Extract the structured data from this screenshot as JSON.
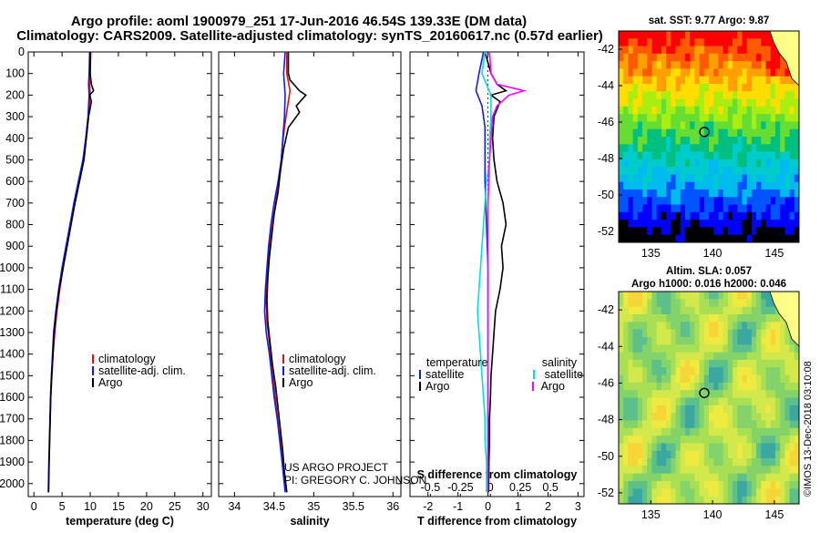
{
  "header": {
    "title_line1": "Argo profile: aoml 1900979_251 17-Jun-2016 46.54S 139.33E (DM data)",
    "title_line2": "Climatology: CARS2009. Satellite-adjusted climatology: synTS_20160617.nc (0.57d earlier)"
  },
  "colors": {
    "climatology": "#e01010",
    "satellite": "#1020e0",
    "argo": "#000000",
    "sat_salinity": "#00e0e0",
    "argo_salinity": "#ff00ff"
  },
  "depth_ticks": [
    "0",
    "100",
    "200",
    "300",
    "400",
    "500",
    "600",
    "700",
    "800",
    "900",
    "1000",
    "1100",
    "1200",
    "1300",
    "1400",
    "1500",
    "1600",
    "1700",
    "1800",
    "1900",
    "2000"
  ],
  "chart_data": [
    {
      "type": "line",
      "id": "temperature",
      "xlabel": "temperature (deg C)",
      "xlim": [
        -1,
        31.5
      ],
      "ylim": [
        2060,
        0
      ],
      "xticks": [
        "0",
        "5",
        "10",
        "15",
        "20",
        "25",
        "30"
      ],
      "legend": [
        "climatology",
        "satellite-adj. clim.",
        "Argo"
      ],
      "series": [
        {
          "name": "climatology",
          "values": [
            [
              10.1,
              0
            ],
            [
              10.0,
              100
            ],
            [
              9.9,
              150
            ],
            [
              10.0,
              200
            ],
            [
              9.7,
              300
            ],
            [
              9.3,
              400
            ],
            [
              8.8,
              500
            ],
            [
              8.0,
              600
            ],
            [
              7.2,
              700
            ],
            [
              6.5,
              800
            ],
            [
              5.8,
              900
            ],
            [
              5.2,
              1000
            ],
            [
              4.6,
              1100
            ],
            [
              4.1,
              1200
            ],
            [
              3.7,
              1300
            ],
            [
              3.4,
              1400
            ],
            [
              3.2,
              1500
            ],
            [
              3.0,
              1600
            ],
            [
              2.9,
              1700
            ],
            [
              2.8,
              1800
            ],
            [
              2.7,
              1900
            ],
            [
              2.6,
              2040
            ]
          ]
        },
        {
          "name": "satellite-adj. clim.",
          "values": [
            [
              9.9,
              0
            ],
            [
              9.8,
              100
            ],
            [
              9.7,
              150
            ],
            [
              9.8,
              200
            ],
            [
              9.6,
              300
            ],
            [
              9.2,
              400
            ],
            [
              8.7,
              500
            ],
            [
              7.9,
              600
            ],
            [
              7.1,
              700
            ],
            [
              6.4,
              800
            ],
            [
              5.7,
              900
            ],
            [
              5.0,
              1000
            ],
            [
              4.4,
              1100
            ],
            [
              3.9,
              1200
            ],
            [
              3.5,
              1300
            ],
            [
              3.3,
              1400
            ],
            [
              3.1,
              1500
            ],
            [
              2.95,
              1600
            ],
            [
              2.85,
              1700
            ],
            [
              2.75,
              1800
            ],
            [
              2.65,
              1900
            ],
            [
              2.55,
              2040
            ]
          ]
        },
        {
          "name": "Argo",
          "values": [
            [
              10.0,
              0
            ],
            [
              10.0,
              100
            ],
            [
              10.2,
              150
            ],
            [
              10.6,
              180
            ],
            [
              9.9,
              200
            ],
            [
              10.2,
              230
            ],
            [
              9.7,
              300
            ],
            [
              9.3,
              400
            ],
            [
              8.9,
              500
            ],
            [
              8.1,
              600
            ],
            [
              7.3,
              700
            ],
            [
              6.6,
              800
            ],
            [
              5.9,
              900
            ],
            [
              5.2,
              1000
            ],
            [
              4.5,
              1100
            ],
            [
              4.0,
              1200
            ],
            [
              3.6,
              1300
            ],
            [
              3.4,
              1400
            ],
            [
              3.15,
              1500
            ],
            [
              3.0,
              1600
            ],
            [
              2.9,
              1700
            ],
            [
              2.8,
              1800
            ],
            [
              2.7,
              1900
            ],
            [
              2.6,
              2040
            ]
          ]
        }
      ]
    },
    {
      "type": "line",
      "id": "salinity",
      "xlabel": "salinity",
      "xlim": [
        33.8,
        36.1
      ],
      "ylim": [
        2060,
        0
      ],
      "xticks": [
        "34",
        "34.5",
        "35",
        "35.5",
        "36"
      ],
      "legend": [
        "climatology",
        "satellite-adj. clim.",
        "Argo"
      ],
      "series": [
        {
          "name": "climatology",
          "values": [
            [
              34.66,
              0
            ],
            [
              34.66,
              100
            ],
            [
              34.7,
              180
            ],
            [
              34.67,
              250
            ],
            [
              34.63,
              350
            ],
            [
              34.6,
              450
            ],
            [
              34.58,
              550
            ],
            [
              34.54,
              650
            ],
            [
              34.5,
              750
            ],
            [
              34.46,
              850
            ],
            [
              34.43,
              950
            ],
            [
              34.41,
              1050
            ],
            [
              34.4,
              1150
            ],
            [
              34.41,
              1250
            ],
            [
              34.44,
              1350
            ],
            [
              34.47,
              1450
            ],
            [
              34.5,
              1550
            ],
            [
              34.53,
              1650
            ],
            [
              34.56,
              1750
            ],
            [
              34.6,
              1850
            ],
            [
              34.63,
              1950
            ],
            [
              34.66,
              2040
            ]
          ]
        },
        {
          "name": "satellite-adj. clim.",
          "values": [
            [
              34.64,
              0
            ],
            [
              34.62,
              100
            ],
            [
              34.64,
              200
            ],
            [
              34.63,
              300
            ],
            [
              34.61,
              400
            ],
            [
              34.59,
              500
            ],
            [
              34.55,
              600
            ],
            [
              34.5,
              700
            ],
            [
              34.46,
              800
            ],
            [
              34.43,
              900
            ],
            [
              34.41,
              1000
            ],
            [
              34.39,
              1100
            ],
            [
              34.38,
              1200
            ],
            [
              34.4,
              1300
            ],
            [
              34.44,
              1400
            ],
            [
              34.47,
              1500
            ],
            [
              34.5,
              1600
            ],
            [
              34.54,
              1700
            ],
            [
              34.57,
              1800
            ],
            [
              34.6,
              1900
            ],
            [
              34.64,
              2040
            ]
          ]
        },
        {
          "name": "Argo",
          "values": [
            [
              34.68,
              0
            ],
            [
              34.68,
              100
            ],
            [
              34.7,
              130
            ],
            [
              34.82,
              180
            ],
            [
              34.9,
              200
            ],
            [
              34.78,
              250
            ],
            [
              34.82,
              280
            ],
            [
              34.68,
              350
            ],
            [
              34.62,
              450
            ],
            [
              34.58,
              550
            ],
            [
              34.55,
              650
            ],
            [
              34.5,
              750
            ],
            [
              34.47,
              850
            ],
            [
              34.44,
              950
            ],
            [
              34.42,
              1050
            ],
            [
              34.41,
              1150
            ],
            [
              34.42,
              1250
            ],
            [
              34.45,
              1350
            ],
            [
              34.48,
              1450
            ],
            [
              34.52,
              1550
            ],
            [
              34.55,
              1650
            ],
            [
              34.58,
              1750
            ],
            [
              34.61,
              1850
            ],
            [
              34.63,
              1950
            ],
            [
              34.66,
              2040
            ]
          ]
        }
      ]
    },
    {
      "type": "line",
      "id": "difference",
      "xlabel": "T difference from climatology",
      "xlabel_top": "S difference from climatology",
      "xlim": [
        -2.6,
        3.2
      ],
      "ylim": [
        2060,
        0
      ],
      "xticks": [
        "-2",
        "-1",
        "0",
        "1",
        "2",
        "3"
      ],
      "xticks_s": [
        "-0.5",
        "-0.25",
        "0",
        "0.25",
        "0.5"
      ],
      "legend_temperature_header": "temperature",
      "legend_salinity_header": "salinity",
      "legend_labels": [
        "satellite",
        "Argo",
        "satellite",
        "Argo"
      ],
      "series": [
        {
          "name": "temperature satellite",
          "values": [
            [
              -0.15,
              0
            ],
            [
              -0.3,
              100
            ],
            [
              -0.4,
              180
            ],
            [
              -0.2,
              250
            ],
            [
              -0.1,
              350
            ],
            [
              -0.1,
              450
            ],
            [
              -0.1,
              600
            ],
            [
              -0.05,
              800
            ],
            [
              0.0,
              1000
            ],
            [
              0.0,
              1200
            ],
            [
              0.0,
              1500
            ],
            [
              0.0,
              1800
            ],
            [
              0.0,
              2040
            ]
          ]
        },
        {
          "name": "temperature Argo",
          "values": [
            [
              -0.1,
              0
            ],
            [
              0.1,
              100
            ],
            [
              0.3,
              150
            ],
            [
              0.6,
              180
            ],
            [
              0.1,
              200
            ],
            [
              0.4,
              230
            ],
            [
              0.2,
              300
            ],
            [
              0.15,
              400
            ],
            [
              0.2,
              500
            ],
            [
              0.3,
              600
            ],
            [
              0.5,
              700
            ],
            [
              0.6,
              800
            ],
            [
              0.45,
              900
            ],
            [
              0.5,
              1000
            ],
            [
              0.4,
              1100
            ],
            [
              0.25,
              1200
            ],
            [
              0.2,
              1300
            ],
            [
              0.15,
              1400
            ],
            [
              0.1,
              1500
            ],
            [
              0.08,
              1600
            ],
            [
              0.05,
              1700
            ],
            [
              0.05,
              1800
            ],
            [
              0.03,
              1900
            ],
            [
              0.02,
              2040
            ]
          ]
        },
        {
          "name": "salinity satellite",
          "values": [
            [
              -0.1,
              0
            ],
            [
              -0.2,
              100
            ],
            [
              0.1,
              200
            ],
            [
              0.1,
              300
            ],
            [
              0.05,
              400
            ],
            [
              0.05,
              500
            ],
            [
              -0.05,
              600
            ],
            [
              -0.1,
              700
            ],
            [
              -0.15,
              800
            ],
            [
              -0.2,
              900
            ],
            [
              -0.25,
              1000
            ],
            [
              -0.3,
              1100
            ],
            [
              -0.35,
              1200
            ],
            [
              -0.3,
              1300
            ],
            [
              -0.25,
              1400
            ],
            [
              -0.2,
              1500
            ],
            [
              -0.15,
              1600
            ],
            [
              -0.1,
              1700
            ],
            [
              -0.1,
              1800
            ],
            [
              -0.05,
              1900
            ],
            [
              -0.05,
              2040
            ]
          ]
        },
        {
          "name": "salinity Argo",
          "values": [
            [
              0.05,
              0
            ],
            [
              0.1,
              100
            ],
            [
              0.3,
              150
            ],
            [
              1.2,
              180
            ],
            [
              0.7,
              200
            ],
            [
              0.3,
              250
            ],
            [
              0.15,
              300
            ],
            [
              0.1,
              400
            ],
            [
              0.05,
              500
            ],
            [
              0.0,
              700
            ],
            [
              0.0,
              1000
            ],
            [
              0.0,
              1500
            ],
            [
              0.0,
              2040
            ]
          ]
        }
      ]
    }
  ],
  "project": {
    "line1": "US ARGO PROJECT",
    "line2": "PI: GREGORY C. JOHNSON"
  },
  "map_top": {
    "title": "sat. SST: 9.77 Argo: 9.87",
    "lat_ticks": [
      "-42",
      "-44",
      "-46",
      "-48",
      "-50",
      "-52"
    ],
    "lon_ticks": [
      "135",
      "140",
      "145"
    ],
    "float_lon": 139.33,
    "float_lat": -46.54
  },
  "map_bottom": {
    "title1": "Altim. SLA: 0.057",
    "title2": "Argo h1000: 0.016 h2000: 0.046",
    "lat_ticks": [
      "-42",
      "-44",
      "-46",
      "-48",
      "-50",
      "-52"
    ],
    "lon_ticks": [
      "135",
      "140",
      "145"
    ],
    "float_lon": 139.33,
    "float_lat": -46.54
  },
  "copyright": "©IMOS 13-Dec-2018 03:10:08"
}
